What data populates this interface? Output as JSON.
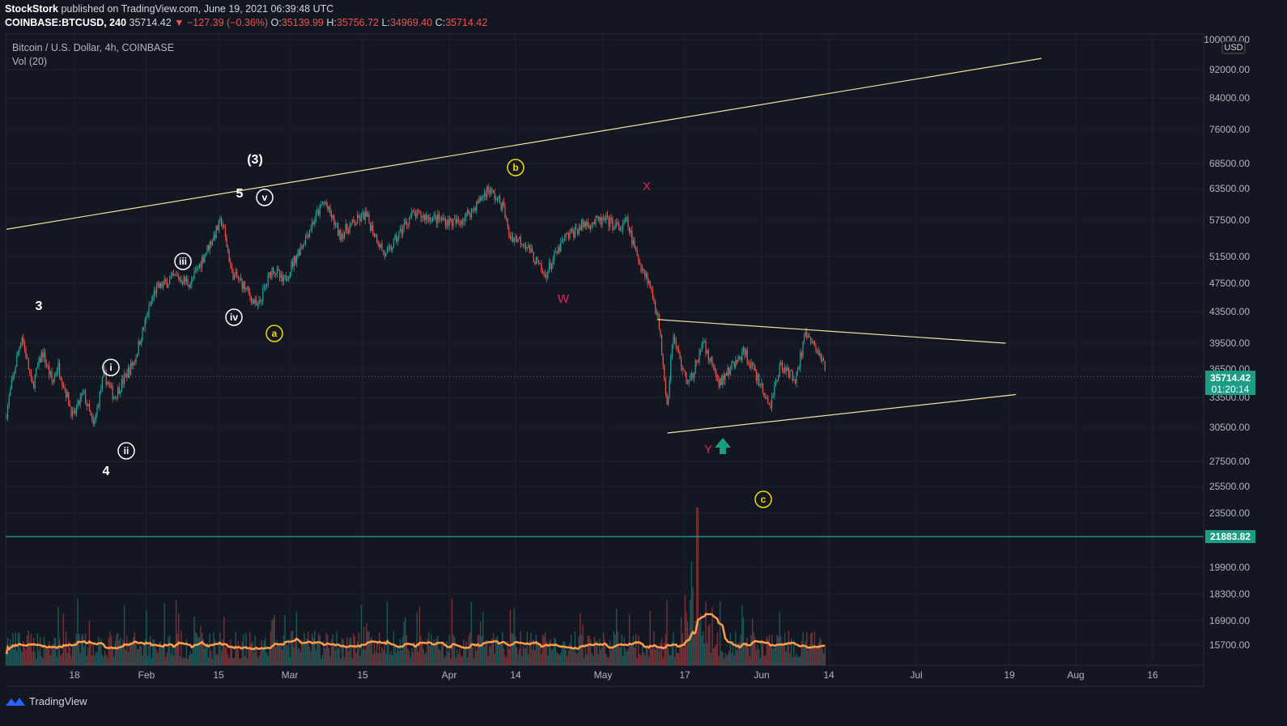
{
  "header": {
    "author": "StockStork",
    "published": "published on TradingView.com, June 19, 2021 06:39:48 UTC",
    "symbol": "COINBASE:BTCUSD, 240",
    "last": "35714.42",
    "change": "▼ −127.39 (−0.36%)",
    "o_label": "O:",
    "o_val": "35139.99",
    "h_label": "H:",
    "h_val": "35756.72",
    "l_label": "L:",
    "l_val": "34969.40",
    "c_label": "C:",
    "c_val": "35714.42"
  },
  "legend": {
    "title": "Bitcoin / U.S. Dollar, 4h, COINBASE",
    "volume": "Vol (20)"
  },
  "footer": {
    "brand": "TradingView"
  },
  "colors": {
    "background": "#131722",
    "up": "#26a69a",
    "down": "#ef5350",
    "trendline": "#f0e4a0",
    "vol_ma": "#ff9d4a",
    "badge": "#1b9c85",
    "yellow_label": "#f5d90a",
    "magenta_label": "#e0245e"
  },
  "chart_data": {
    "type": "candlestick",
    "price_scale": {
      "currency": "USD",
      "ticks": [
        "100000.00",
        "92000.00",
        "84000.00",
        "76000.00",
        "68500.00",
        "63500.00",
        "57500.00",
        "51500.00",
        "47500.00",
        "43500.00",
        "39500.00",
        "36500.00",
        "33500.00",
        "30500.00",
        "27500.00",
        "25500.00",
        "23500.00",
        "21000.00",
        "19900.00",
        "18300.00",
        "16900.00",
        "15700.00"
      ],
      "last_price": "35714.42",
      "countdown": "01:20:14",
      "horizontal_level": "21883.82"
    },
    "x_ticks": [
      "18",
      "Feb",
      "15",
      "Mar",
      "15",
      "Apr",
      "14",
      "May",
      "17",
      "Jun",
      "14",
      "Jul",
      "19",
      "Aug",
      "16"
    ],
    "path_points": [
      {
        "date": "2021-01-10",
        "price": 32000
      },
      {
        "date": "2021-01-13",
        "price": 40500
      },
      {
        "date": "2021-01-15",
        "price": 34500
      },
      {
        "date": "2021-01-17",
        "price": 38500
      },
      {
        "date": "2021-01-19",
        "price": 35000
      },
      {
        "date": "2021-01-20",
        "price": 37000
      },
      {
        "date": "2021-01-23",
        "price": 31500
      },
      {
        "date": "2021-01-25",
        "price": 34000
      },
      {
        "date": "2021-01-27",
        "price": 30500
      },
      {
        "date": "2021-01-29",
        "price": 36000
      },
      {
        "date": "2021-01-31",
        "price": 33500
      },
      {
        "date": "2021-02-04",
        "price": 37500
      },
      {
        "date": "2021-02-08",
        "price": 46500
      },
      {
        "date": "2021-02-12",
        "price": 48500
      },
      {
        "date": "2021-02-15",
        "price": 47500
      },
      {
        "date": "2021-02-18",
        "price": 52500
      },
      {
        "date": "2021-02-21",
        "price": 57500
      },
      {
        "date": "2021-02-23",
        "price": 49000
      },
      {
        "date": "2021-02-25",
        "price": 47500
      },
      {
        "date": "2021-02-28",
        "price": 44000
      },
      {
        "date": "2021-03-03",
        "price": 50000
      },
      {
        "date": "2021-03-05",
        "price": 47500
      },
      {
        "date": "2021-03-09",
        "price": 54000
      },
      {
        "date": "2021-03-13",
        "price": 61000
      },
      {
        "date": "2021-03-16",
        "price": 55000
      },
      {
        "date": "2021-03-21",
        "price": 58500
      },
      {
        "date": "2021-03-25",
        "price": 51500
      },
      {
        "date": "2021-03-30",
        "price": 58500
      },
      {
        "date": "2021-04-03",
        "price": 58000
      },
      {
        "date": "2021-04-08",
        "price": 57000
      },
      {
        "date": "2021-04-11",
        "price": 59500
      },
      {
        "date": "2021-04-14",
        "price": 63500
      },
      {
        "date": "2021-04-17",
        "price": 60000
      },
      {
        "date": "2021-04-18",
        "price": 55000
      },
      {
        "date": "2021-04-21",
        "price": 54000
      },
      {
        "date": "2021-04-25",
        "price": 48500
      },
      {
        "date": "2021-04-29",
        "price": 54500
      },
      {
        "date": "2021-05-03",
        "price": 57000
      },
      {
        "date": "2021-05-07",
        "price": 57500
      },
      {
        "date": "2021-05-10",
        "price": 56000
      },
      {
        "date": "2021-05-11",
        "price": 57500
      },
      {
        "date": "2021-05-13",
        "price": 51500
      },
      {
        "date": "2021-05-15",
        "price": 48500
      },
      {
        "date": "2021-05-17",
        "price": 43500
      },
      {
        "date": "2021-05-19",
        "price": 32500
      },
      {
        "date": "2021-05-20",
        "price": 40500
      },
      {
        "date": "2021-05-23",
        "price": 34500
      },
      {
        "date": "2021-05-26",
        "price": 39500
      },
      {
        "date": "2021-05-29",
        "price": 35000
      },
      {
        "date": "2021-06-03",
        "price": 38500
      },
      {
        "date": "2021-06-08",
        "price": 32500
      },
      {
        "date": "2021-06-10",
        "price": 37000
      },
      {
        "date": "2021-06-13",
        "price": 35500
      },
      {
        "date": "2021-06-15",
        "price": 40500
      },
      {
        "date": "2021-06-18",
        "price": 38000
      },
      {
        "date": "2021-06-19",
        "price": 35714
      }
    ],
    "trendlines": [
      {
        "from": {
          "date": "2021-01-10",
          "price": 56000
        },
        "to": {
          "date": "2021-07-31",
          "price": 95000
        }
      },
      {
        "from": {
          "date": "2021-05-17",
          "price": 42500
        },
        "to": {
          "date": "2021-07-24",
          "price": 39500
        }
      },
      {
        "from": {
          "date": "2021-05-19",
          "price": 30000
        },
        "to": {
          "date": "2021-07-26",
          "price": 33800
        }
      }
    ],
    "wave_labels": [
      {
        "text": "3",
        "style": "plain"
      },
      {
        "text": "4",
        "style": "plain"
      },
      {
        "text": "5",
        "style": "plain"
      },
      {
        "text": "(3)",
        "style": "plain"
      },
      {
        "text": "i",
        "style": "circle-white"
      },
      {
        "text": "ii",
        "style": "circle-white"
      },
      {
        "text": "iii",
        "style": "circle-white"
      },
      {
        "text": "iv",
        "style": "circle-white"
      },
      {
        "text": "v",
        "style": "circle-white"
      },
      {
        "text": "a",
        "style": "circle-yellow"
      },
      {
        "text": "b",
        "style": "circle-yellow"
      },
      {
        "text": "c",
        "style": "circle-yellow"
      },
      {
        "text": "W",
        "style": "magenta"
      },
      {
        "text": "X",
        "style": "magenta"
      },
      {
        "text": "Y",
        "style": "magenta"
      }
    ],
    "volume_ma": "Vol (20)"
  }
}
